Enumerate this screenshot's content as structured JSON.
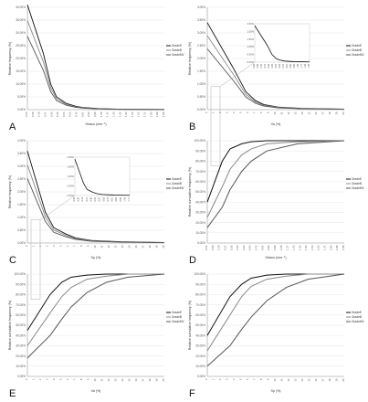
{
  "panels": [
    {
      "letter": "A",
      "chart_data": {
        "type": "line",
        "xlabel": "Hirano (mm⁻¹)",
        "ylabel": "Relative frequency (%)",
        "y_ticks": [
          "0.00%",
          "5.00%",
          "10.00%",
          "15.00%",
          "20.00%",
          "25.00%",
          "30.00%",
          "35.00%",
          "40.00%"
        ],
        "ylim": [
          0,
          40
        ],
        "legend_position": "right",
        "series": [
          {
            "name": "GradeE",
            "color": "#111111"
          },
          {
            "name": "GradeB",
            "color": "#888888"
          },
          {
            "name": "GradeMV",
            "color": "#555555"
          }
        ],
        "x": [
          0.0,
          0.02,
          0.04,
          0.06,
          0.1,
          0.15,
          0.2,
          0.3,
          0.5,
          1.0
        ],
        "values": [
          41,
          22,
          10,
          5,
          2.5,
          1.3,
          0.8,
          0.4,
          0.15,
          0.05
        ],
        "x_ticks": [
          "0.00",
          "0.09",
          "0.18",
          "0.27",
          "0.36",
          "0.45",
          "0.54",
          "0.63",
          "0.72",
          "0.81",
          "0.90",
          "0.99",
          "1.08",
          "1.17",
          "1.26",
          "1.35",
          "1.44",
          "1.53",
          "1.62",
          "1.71",
          "1.80",
          "1.89",
          "1.98"
        ]
      }
    },
    {
      "letter": "B",
      "chart_data": {
        "type": "line",
        "xlabel": "Va (%)",
        "ylabel": "Relative frequency (%)",
        "y_ticks": [
          "0.00%",
          "0.50%",
          "1.00%",
          "1.50%",
          "2.00%",
          "2.50%",
          "3.00%",
          "3.50%",
          "4.00%"
        ],
        "ylim": [
          0,
          4
        ],
        "legend_position": "right",
        "series": [
          {
            "name": "GradeE",
            "color": "#111111"
          },
          {
            "name": "GradeB",
            "color": "#888888"
          },
          {
            "name": "GradeMV",
            "color": "#555555"
          }
        ],
        "x": [
          0.0,
          0.5,
          1,
          1.5,
          2,
          3,
          5,
          10
        ],
        "values": [
          3.4,
          1.6,
          0.7,
          0.35,
          0.2,
          0.1,
          0.05,
          0.02
        ],
        "x_ticks": [
          "0",
          "1",
          "2",
          "3",
          "4",
          "5",
          "6",
          "7",
          "8",
          "9",
          "10",
          "11",
          "12",
          "13",
          "14",
          "15",
          "16",
          "17",
          "18",
          "19",
          "20"
        ],
        "inset": {
          "y_ticks": [
            "0.00%",
            "0.50%",
            "1.00%",
            "1.50%",
            "2.00%",
            "2.50%"
          ],
          "x_ticks": [
            "0.00",
            "0.09",
            "0.18",
            "0.27",
            "0.36",
            "0.45",
            "0.54",
            "0.63",
            "0.72",
            "0.81",
            "0.90",
            "0.99",
            "1.08",
            "1.17",
            "1.26",
            "1.35"
          ]
        }
      }
    },
    {
      "letter": "C",
      "chart_data": {
        "type": "line",
        "xlabel": "Sp (%)",
        "ylabel": "Relative frequency (%)",
        "y_ticks": [
          "0.00%",
          "0.50%",
          "1.00%",
          "1.50%",
          "2.00%",
          "2.50%",
          "3.00%",
          "3.50%",
          "4.00%"
        ],
        "ylim": [
          0,
          4
        ],
        "legend_position": "right",
        "series": [
          {
            "name": "GradeE",
            "color": "#111111"
          },
          {
            "name": "GradeB",
            "color": "#888888"
          },
          {
            "name": "GradeMV",
            "color": "#555555"
          }
        ],
        "x": [
          0.0,
          0.5,
          1,
          2,
          3,
          5,
          10,
          20
        ],
        "values": [
          3.6,
          1.2,
          0.6,
          0.35,
          0.2,
          0.1,
          0.05,
          0.02
        ],
        "x_ticks": [
          "0",
          "1",
          "2",
          "3",
          "4",
          "5",
          "6",
          "7",
          "8",
          "9",
          "10",
          "11",
          "12",
          "13",
          "14",
          "15",
          "16",
          "17",
          "18",
          "19",
          "20"
        ],
        "inset": {
          "y_ticks": [
            "0.00%",
            "0.50%",
            "1.00%",
            "1.50%",
            "2.00%"
          ],
          "x_ticks": [
            "0.00",
            "0.09",
            "0.18",
            "0.27",
            "0.36",
            "0.45",
            "0.54",
            "0.63",
            "0.72",
            "0.81",
            "0.90",
            "0.99",
            "1.08",
            "1.17"
          ]
        }
      }
    },
    {
      "letter": "D",
      "chart_data": {
        "type": "line",
        "xlabel": "Hirano (mm⁻¹)",
        "ylabel": "Relative cumulative frequency (%)",
        "y_ticks": [
          "0.00%",
          "10.00%",
          "20.00%",
          "30.00%",
          "40.00%",
          "50.00%",
          "60.00%",
          "70.00%",
          "80.00%",
          "90.00%",
          "100.00%"
        ],
        "ylim": [
          0,
          100
        ],
        "legend_position": "right",
        "series": [
          {
            "name": "GradeE",
            "color": "#111111",
            "x": [
              0,
              0.05,
              0.1,
              0.2,
              0.3,
              0.5,
              1,
              2
            ],
            "values": [
              40,
              80,
              92,
              97,
              99,
              100,
              100,
              100
            ]
          },
          {
            "name": "GradeB",
            "color": "#888888",
            "x": [
              0,
              0.05,
              0.1,
              0.2,
              0.3,
              0.5,
              1,
              2
            ],
            "values": [
              25,
              55,
              72,
              86,
              92,
              97,
              99,
              100
            ]
          },
          {
            "name": "GradeMV",
            "color": "#555555",
            "x": [
              0,
              0.05,
              0.1,
              0.2,
              0.3,
              0.5,
              1,
              2
            ],
            "values": [
              15,
              35,
              52,
              70,
              80,
              90,
              97,
              100
            ]
          }
        ],
        "x_ticks": [
          "0.00",
          "0.09",
          "0.18",
          "0.27",
          "0.36",
          "0.45",
          "0.54",
          "0.63",
          "0.72",
          "0.81",
          "0.90",
          "0.99",
          "1.08",
          "1.17",
          "1.26",
          "1.35",
          "1.44",
          "1.53",
          "1.62",
          "1.71",
          "1.80",
          "1.89",
          "1.98"
        ]
      }
    },
    {
      "letter": "E",
      "chart_data": {
        "type": "line",
        "xlabel": "Va (%)",
        "ylabel": "Relative cumulative frequency (%)",
        "y_ticks": [
          "0.00%",
          "10.00%",
          "20.00%",
          "30.00%",
          "40.00%",
          "50.00%",
          "60.00%",
          "70.00%",
          "80.00%",
          "90.00%",
          "100.00%"
        ],
        "ylim": [
          0,
          100
        ],
        "legend_position": "right",
        "series": [
          {
            "name": "GradeE",
            "color": "#111111",
            "x": [
              0,
              1,
              2,
              3,
              5,
              8,
              12,
              20
            ],
            "values": [
              45,
              80,
              92,
              97,
              99,
              100,
              100,
              100
            ]
          },
          {
            "name": "GradeB",
            "color": "#888888",
            "x": [
              0,
              1,
              2,
              3,
              5,
              8,
              12,
              20
            ],
            "values": [
              30,
              62,
              78,
              87,
              95,
              98,
              100,
              100
            ]
          },
          {
            "name": "GradeMV",
            "color": "#555555",
            "x": [
              0,
              1,
              2,
              3,
              5,
              8,
              12,
              20
            ],
            "values": [
              18,
              40,
              56,
              68,
              82,
              92,
              97,
              100
            ]
          }
        ],
        "x_ticks": [
          "0",
          "1",
          "2",
          "3",
          "4",
          "5",
          "6",
          "7",
          "8",
          "9",
          "10",
          "11",
          "12",
          "13",
          "14",
          "15",
          "16",
          "17",
          "18",
          "19",
          "20"
        ]
      }
    },
    {
      "letter": "F",
      "chart_data": {
        "type": "line",
        "xlabel": "Sp (%)",
        "ylabel": "Relative cumulative frequency (%)",
        "y_ticks": [
          "0.00%",
          "10.00%",
          "20.00%",
          "30.00%",
          "40.00%",
          "50.00%",
          "60.00%",
          "70.00%",
          "80.00%",
          "90.00%",
          "100.00%"
        ],
        "ylim": [
          0,
          100
        ],
        "legend_position": "right",
        "series": [
          {
            "name": "GradeE",
            "color": "#111111",
            "x": [
              0,
              1,
              2,
              3,
              5,
              8,
              12,
              20
            ],
            "values": [
              40,
              78,
              90,
              96,
              99,
              100,
              100,
              100
            ]
          },
          {
            "name": "GradeB",
            "color": "#888888",
            "x": [
              0,
              1,
              2,
              3,
              5,
              8,
              12,
              20
            ],
            "values": [
              25,
              60,
              78,
              88,
              95,
              98,
              100,
              100
            ]
          },
          {
            "name": "GradeMV",
            "color": "#555555",
            "x": [
              0,
              1,
              2,
              3,
              5,
              8,
              12,
              20
            ],
            "values": [
              10,
              30,
              46,
              58,
              74,
              87,
              95,
              100
            ]
          }
        ],
        "x_ticks": [
          "0",
          "1",
          "2",
          "3",
          "4",
          "5",
          "6",
          "7",
          "8",
          "9",
          "10",
          "11",
          "12",
          "13",
          "14",
          "15",
          "16",
          "17",
          "18",
          "19",
          "20"
        ]
      }
    }
  ]
}
